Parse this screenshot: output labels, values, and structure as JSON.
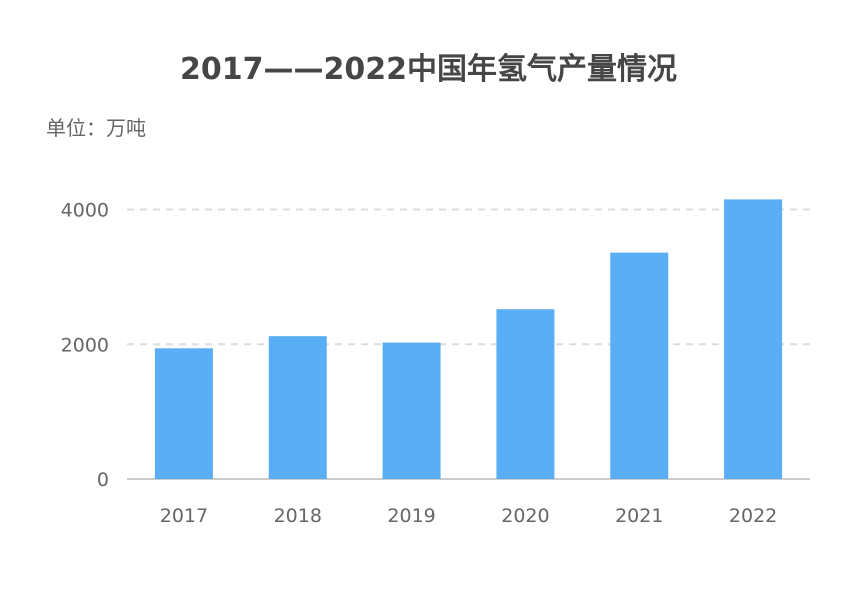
{
  "chart_data": {
    "type": "bar",
    "title": "2017——2022中国年氢气产量情况",
    "unit_label": "单位：万吨",
    "categories": [
      "2017",
      "2018",
      "2019",
      "2020",
      "2021",
      "2022"
    ],
    "values": [
      1940,
      2120,
      2025,
      2520,
      3360,
      4150
    ],
    "yticks": [
      "0",
      "2000",
      "4000"
    ],
    "ylim": [
      0,
      4000
    ],
    "grid": true,
    "bar_color": "#5aaef5"
  }
}
